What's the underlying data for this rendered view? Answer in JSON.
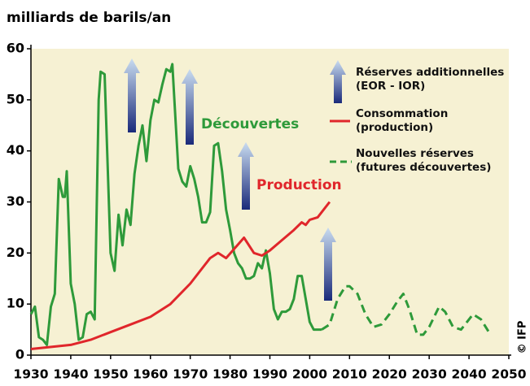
{
  "chart_data": {
    "type": "line",
    "title": "milliards de barils/an",
    "xlim": [
      1930,
      2050
    ],
    "xticks": [
      1930,
      1940,
      1950,
      1960,
      1970,
      1980,
      1990,
      2000,
      2010,
      2020,
      2030,
      2040,
      2050
    ],
    "ylim": [
      0,
      60
    ],
    "yticks": [
      0,
      10,
      20,
      30,
      40,
      50,
      60
    ],
    "annotations": [
      "Découvertes",
      "Production"
    ],
    "legend_arrow": "Réserves additionnelles (EOR - IOR)",
    "credit": "© IFP",
    "series": [
      {
        "name": "Nouvelles réserves (futures découvertes)",
        "color": "#2e9a3a",
        "dashed": true,
        "x": [
          2003,
          2005,
          2007,
          2009,
          2010,
          2012,
          2014,
          2016,
          2018,
          2020,
          2022,
          2023.5,
          2025,
          2027,
          2028.5,
          2030,
          2032.5,
          2034,
          2036,
          2038,
          2041,
          2043,
          2045
        ],
        "values": [
          5,
          6,
          11,
          13.5,
          13.5,
          12,
          8,
          5.5,
          6,
          8,
          10.5,
          12,
          9,
          4,
          4,
          5.5,
          9.5,
          8.5,
          5.5,
          5,
          8,
          7,
          4.5
        ]
      },
      {
        "name": "Consommation (production)",
        "color": "#e0262b",
        "dashed": false,
        "x": [
          1930,
          1940,
          1945,
          1950,
          1955,
          1960,
          1965,
          1970,
          1975,
          1977,
          1979,
          1983.5,
          1986,
          1988,
          1990,
          1993,
          1996,
          1998,
          1999,
          2000,
          2002,
          2005
        ],
        "values": [
          1.2,
          2,
          3,
          4.5,
          6,
          7.5,
          10,
          14,
          19,
          20,
          19,
          23,
          20,
          19.5,
          20.5,
          22.5,
          24.5,
          26,
          25.5,
          26.5,
          27,
          30
        ]
      }
    ],
    "discoveries": {
      "color": "#2e9a3a",
      "x": [
        1930,
        1931,
        1932,
        1933,
        1934,
        1935,
        1936,
        1937,
        1938,
        1938.5,
        1939,
        1940,
        1941,
        1942,
        1943,
        1944,
        1945,
        1946,
        1947,
        1947.5,
        1948.5,
        1950,
        1951,
        1952,
        1953,
        1954,
        1955,
        1956,
        1957,
        1958,
        1959,
        1960,
        1961,
        1962,
        1963,
        1964,
        1965,
        1965.5,
        1967,
        1968,
        1969,
        1970,
        1971,
        1972,
        1973,
        1974,
        1975,
        1976,
        1977,
        1978,
        1979,
        1980,
        1981,
        1982,
        1983,
        1984,
        1985,
        1986,
        1987,
        1988,
        1989,
        1990,
        1991,
        1992,
        1993,
        1994,
        1995,
        1996,
        1997,
        1998,
        1999,
        2000,
        2001,
        2002,
        2003
      ],
      "values": [
        8,
        9.5,
        3.5,
        3,
        2,
        9.5,
        12,
        34.5,
        31,
        31,
        36,
        14,
        10,
        3,
        3.5,
        8,
        8.5,
        7,
        50,
        55.5,
        55,
        20,
        16.5,
        27.5,
        21.5,
        28.5,
        25.5,
        35.5,
        41,
        45,
        38,
        46,
        50,
        49.5,
        53,
        56,
        55.5,
        57,
        36.5,
        34,
        33,
        37,
        34.5,
        31,
        26,
        26,
        28,
        41,
        41.5,
        36,
        28.5,
        24.5,
        20,
        18,
        17,
        15,
        15,
        15.5,
        18,
        17,
        20.5,
        16,
        9,
        7,
        8.5,
        8.5,
        9,
        11,
        15.5,
        15.5,
        11,
        6.5,
        5,
        5,
        5
      ]
    }
  }
}
